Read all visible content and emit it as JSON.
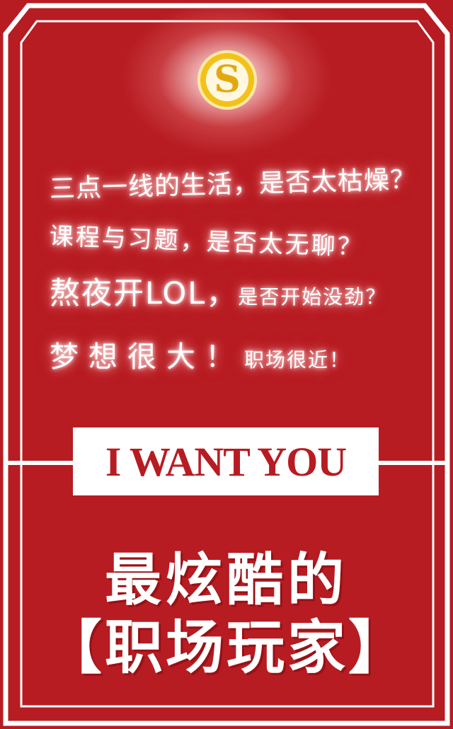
{
  "poster": {
    "logo_letter": "S",
    "slogans": {
      "line1": "三点一线的生活，是否太枯燥？",
      "line2": "课程与习题，是否太无聊？",
      "line3_main": "熬夜开LOL，",
      "line3_tail": "是否开始没劲？",
      "line4_main": "梦想很大！",
      "line4_tail": "职场很近！"
    },
    "banner_text": "I WANT YOU",
    "headline_line1": "最炫酷的",
    "headline_line2": "【职场玩家】"
  },
  "colors": {
    "background": "#b71c22",
    "frame": "#ffffff",
    "logo_gold": "#f2c21a",
    "banner_text": "#b71c22"
  }
}
